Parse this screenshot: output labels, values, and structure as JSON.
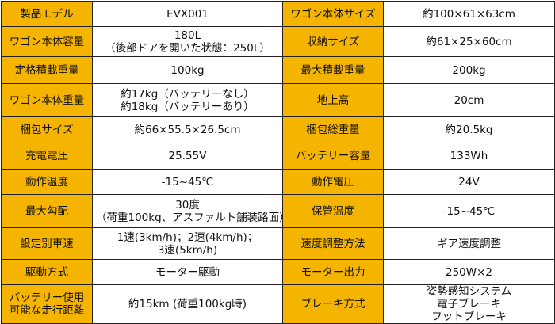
{
  "spec_table": {
    "rows": [
      [
        {
          "label": "製品モデル",
          "value": [
            "EVX001"
          ]
        },
        {
          "label": "ワゴン本体サイズ",
          "value": [
            "約100×61×63cm"
          ]
        }
      ],
      [
        {
          "label": "ワゴン本体容量",
          "value": [
            "180L",
            "（後部ドアを開いた状態：250L）"
          ]
        },
        {
          "label": "収納サイズ",
          "value": [
            "約61×25×60cm"
          ]
        }
      ],
      [
        {
          "label": "定格積載重量",
          "value": [
            "100kg"
          ]
        },
        {
          "label": "最大積載重量",
          "value": [
            "200kg"
          ]
        }
      ],
      [
        {
          "label": "ワゴン本体重量",
          "value": [
            "約17kg（バッテリーなし）",
            "約18kg（バッテリーあり）"
          ]
        },
        {
          "label": "地上高",
          "value": [
            "20cm"
          ]
        }
      ],
      [
        {
          "label": "梱包サイズ",
          "value": [
            "約66×55.5×26.5cm"
          ]
        },
        {
          "label": "梱包総重量",
          "value": [
            "約20.5kg"
          ]
        }
      ],
      [
        {
          "label": "充電電圧",
          "value": [
            "25.55V"
          ]
        },
        {
          "label": "バッテリー容量",
          "value": [
            "133Wh"
          ]
        }
      ],
      [
        {
          "label": "動作温度",
          "value": [
            "-15~45℃"
          ]
        },
        {
          "label": "動作電圧",
          "value": [
            "24V"
          ]
        }
      ],
      [
        {
          "label": "最大勾配",
          "value": [
            "30度",
            "（荷重100kg、アスファルト舗装路面）"
          ]
        },
        {
          "label": "保管温度",
          "value": [
            "-15~45℃"
          ]
        }
      ],
      [
        {
          "label": "設定別車速",
          "value": [
            "1速(3km/h)；2速(4km/h)；",
            "3速(5km/h)"
          ]
        },
        {
          "label": "速度調整方法",
          "value": [
            "ギア速度調整"
          ]
        }
      ],
      [
        {
          "label": "駆動方式",
          "value": [
            "モーター駆動"
          ]
        },
        {
          "label": "モーター出力",
          "value": [
            "250W×2"
          ]
        }
      ],
      [
        {
          "label": [
            "バッテリー使用",
            "可能な走行距離"
          ],
          "value": [
            "約15km (荷重100kg時)"
          ]
        },
        {
          "label": "ブレーキ方式",
          "value": [
            "姿勢感知システム",
            "電子ブレーキ",
            "フットブレーキ"
          ]
        }
      ]
    ]
  }
}
